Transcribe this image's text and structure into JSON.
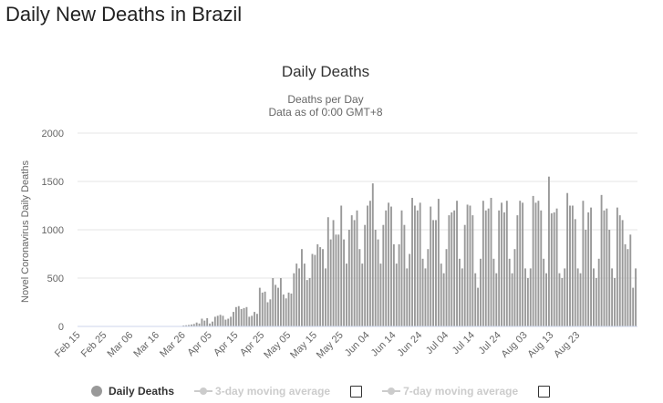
{
  "page": {
    "title": "Daily New Deaths in Brazil"
  },
  "chart_data": {
    "type": "bar",
    "title": "Daily Deaths",
    "subtitle": [
      "Deaths per Day",
      "Data as of 0:00 GMT+8"
    ],
    "xlabel": "",
    "ylabel": "Novel Coronavirus Daily Deaths",
    "ylim": [
      0,
      2000
    ],
    "yticks": [
      0,
      500,
      1000,
      1500,
      2000
    ],
    "x_tick_labels": [
      "Feb 15",
      "Feb 25",
      "Mar 06",
      "Mar 16",
      "Mar 26",
      "Apr 05",
      "Apr 15",
      "Apr 25",
      "May 05",
      "May 15",
      "May 25",
      "Jun 04",
      "Jun 14",
      "Jun 24",
      "Jul 04",
      "Jul 14",
      "Jul 24",
      "Aug 03",
      "Aug 13",
      "Aug 23"
    ],
    "start_date": "Feb 15",
    "color": "#999999",
    "series": [
      {
        "name": "Daily Deaths",
        "values": [
          0,
          0,
          0,
          0,
          0,
          0,
          0,
          0,
          0,
          0,
          0,
          0,
          0,
          0,
          0,
          0,
          0,
          0,
          0,
          0,
          0,
          0,
          0,
          0,
          0,
          0,
          0,
          0,
          0,
          0,
          0,
          0,
          0,
          0,
          0,
          0,
          0,
          0,
          0,
          0,
          10,
          12,
          15,
          20,
          25,
          40,
          30,
          80,
          60,
          85,
          30,
          50,
          100,
          110,
          120,
          110,
          70,
          80,
          100,
          150,
          200,
          210,
          180,
          190,
          200,
          100,
          110,
          150,
          130,
          400,
          350,
          360,
          250,
          280,
          500,
          430,
          400,
          500,
          330,
          290,
          350,
          340,
          550,
          650,
          600,
          800,
          650,
          480,
          500,
          750,
          740,
          850,
          820,
          800,
          600,
          1130,
          900,
          1100,
          950,
          950,
          1250,
          900,
          650,
          1000,
          1150,
          1100,
          1200,
          800,
          650,
          1050,
          1250,
          1300,
          1480,
          1000,
          900,
          650,
          1050,
          1200,
          1280,
          1240,
          850,
          650,
          850,
          1200,
          1050,
          600,
          750,
          1330,
          1250,
          1200,
          1280,
          700,
          600,
          800,
          1240,
          1100,
          1100,
          1320,
          650,
          550,
          800,
          1150,
          1180,
          1200,
          1300,
          700,
          600,
          1050,
          1260,
          1250,
          1150,
          550,
          400,
          700,
          1300,
          1200,
          1220,
          1330,
          700,
          550,
          1200,
          1280,
          1180,
          1300,
          700,
          550,
          800,
          1150,
          1300,
          1280,
          600,
          500,
          600,
          1350,
          1280,
          1300,
          1200,
          700,
          550,
          1550,
          1170,
          1180,
          1220,
          550,
          500,
          600,
          1380,
          1250,
          1250,
          1110,
          600,
          550,
          1300,
          1000,
          1180,
          1230,
          600,
          500,
          700,
          1360,
          1200,
          1220,
          1000,
          600,
          500,
          1230,
          1150,
          1100,
          850,
          800,
          950,
          400,
          600
        ]
      },
      {
        "name": "3-day moving average",
        "visible": false
      },
      {
        "name": "7-day moving average",
        "visible": false
      }
    ]
  },
  "legend": {
    "items": [
      {
        "label": "Daily Deaths",
        "icon": "circle-marker-icon",
        "color": "#999999"
      },
      {
        "label": "3-day moving average",
        "icon": "line-marker-icon",
        "color": "#cccccc"
      },
      {
        "label": "7-day moving average",
        "icon": "line-marker-icon",
        "color": "#cccccc"
      }
    ]
  }
}
